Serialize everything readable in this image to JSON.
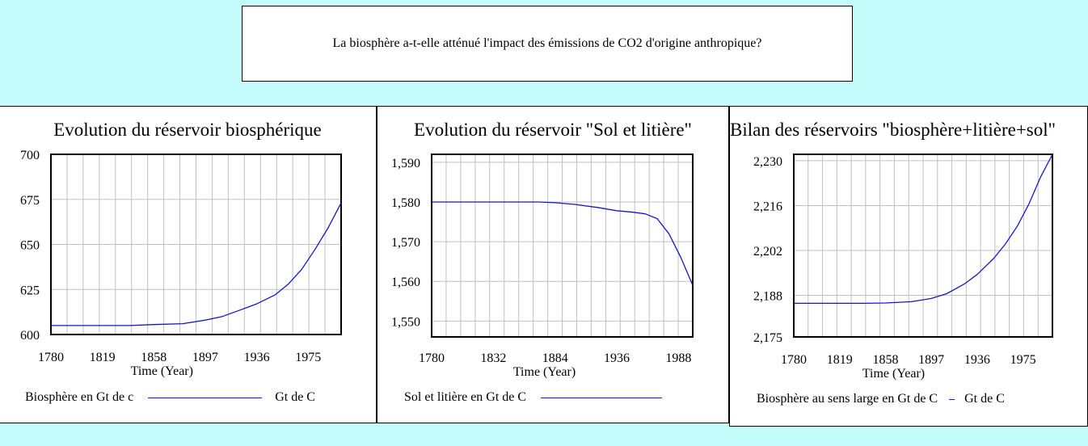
{
  "question": "La biosphère a-t-elle atténué l'impact des émissions de CO2 d'origine anthropique?",
  "colors": {
    "background": "#c4fcfc",
    "series": "#1616c8",
    "grid": "#c0c0c0"
  },
  "chart_data": [
    {
      "type": "line",
      "title": "Evolution du réservoir biosphérique",
      "xlabel": "Time (Year)",
      "ylabel": "",
      "xlim": [
        1780,
        2000
      ],
      "ylim": [
        600,
        700
      ],
      "x_ticks": [
        "1780",
        "1819",
        "1858",
        "1897",
        "1936",
        "1975"
      ],
      "y_ticks": [
        "700",
        "675",
        "650",
        "625",
        "600"
      ],
      "grid": true,
      "legend": {
        "series_label": "Biosphère en Gt de c",
        "unit": "Gt de C"
      },
      "series": [
        {
          "name": "Biosphère en Gt de c",
          "x": [
            1780,
            1819,
            1840,
            1858,
            1880,
            1897,
            1910,
            1925,
            1936,
            1950,
            1960,
            1970,
            1980,
            1990,
            2000
          ],
          "y": [
            605,
            605,
            605,
            605.5,
            606,
            608,
            610,
            614,
            617,
            622,
            628,
            636,
            647,
            659,
            673
          ]
        }
      ]
    },
    {
      "type": "line",
      "title": "Evolution du réservoir \"Sol et litière\"",
      "xlabel": "Time (Year)",
      "ylabel": "",
      "xlim": [
        1780,
        2000
      ],
      "ylim": [
        1546,
        1592
      ],
      "x_ticks": [
        "1780",
        "1832",
        "1884",
        "1936",
        "1988"
      ],
      "y_ticks": [
        "1,590",
        "1,580",
        "1,570",
        "1,560",
        "1,550"
      ],
      "grid": true,
      "legend": {
        "series_label": "Sol et litière en Gt de C",
        "unit": ""
      },
      "series": [
        {
          "name": "Sol et litière en Gt de C",
          "x": [
            1780,
            1832,
            1870,
            1884,
            1900,
            1920,
            1936,
            1950,
            1960,
            1970,
            1980,
            1990,
            2000
          ],
          "y": [
            1580,
            1580,
            1580,
            1579.8,
            1579.4,
            1578.6,
            1577.8,
            1577.4,
            1577,
            1575.8,
            1572,
            1566,
            1559
          ]
        }
      ]
    },
    {
      "type": "line",
      "title": "Bilan des réservoirs \"biosphère+litière+sol\"",
      "xlabel": "Time (Year)",
      "ylabel": "",
      "xlim": [
        1780,
        2000
      ],
      "ylim": [
        2175,
        2232
      ],
      "x_ticks": [
        "1780",
        "1819",
        "1858",
        "1897",
        "1936",
        "1975"
      ],
      "y_ticks": [
        "2,230",
        "2,216",
        "2,202",
        "2,188",
        "2,175"
      ],
      "grid": true,
      "legend": {
        "series_label": "Biosphère au sens large en Gt de C",
        "unit": "Gt de C"
      },
      "series": [
        {
          "name": "Biosphère au sens large en Gt de C",
          "x": [
            1780,
            1819,
            1840,
            1858,
            1880,
            1897,
            1910,
            1925,
            1936,
            1950,
            1960,
            1970,
            1980,
            1990,
            2000
          ],
          "y": [
            2185.5,
            2185.5,
            2185.5,
            2185.6,
            2186,
            2187,
            2188.5,
            2191.5,
            2194.5,
            2199.5,
            2204,
            2209.5,
            2216.5,
            2225,
            2235
          ]
        }
      ]
    }
  ]
}
